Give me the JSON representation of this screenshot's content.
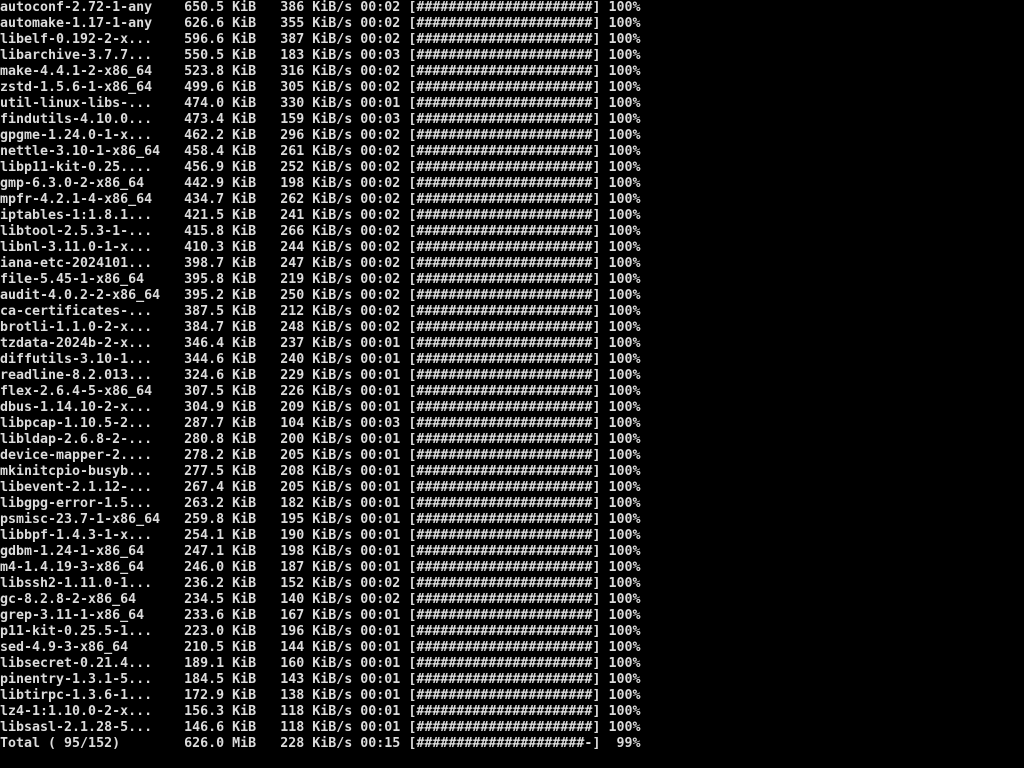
{
  "terminal": {
    "kind": "pacman-download-progress",
    "colors": {
      "background": "#000000",
      "foreground": "#dcdcdc"
    },
    "format": {
      "name_width": 20,
      "size_width": 12,
      "rate_width": 12,
      "time_width": 6,
      "percent_width": 5,
      "bar_inner_width": 22,
      "bar_filled_char": "#",
      "bar_empty_char": "-"
    },
    "downloads": [
      {
        "name": "autoconf-2.72-1-any",
        "size": "650.5 KiB",
        "rate": "386 KiB/s",
        "time": "00:02",
        "percent": 100
      },
      {
        "name": "automake-1.17-1-any",
        "size": "626.6 KiB",
        "rate": "355 KiB/s",
        "time": "00:02",
        "percent": 100
      },
      {
        "name": "libelf-0.192-2-x...",
        "size": "596.6 KiB",
        "rate": "387 KiB/s",
        "time": "00:02",
        "percent": 100
      },
      {
        "name": "libarchive-3.7.7...",
        "size": "550.5 KiB",
        "rate": "183 KiB/s",
        "time": "00:03",
        "percent": 100
      },
      {
        "name": "make-4.4.1-2-x86_64",
        "size": "523.8 KiB",
        "rate": "316 KiB/s",
        "time": "00:02",
        "percent": 100
      },
      {
        "name": "zstd-1.5.6-1-x86_64",
        "size": "499.6 KiB",
        "rate": "305 KiB/s",
        "time": "00:02",
        "percent": 100
      },
      {
        "name": "util-linux-libs-...",
        "size": "474.0 KiB",
        "rate": "330 KiB/s",
        "time": "00:01",
        "percent": 100
      },
      {
        "name": "findutils-4.10.0...",
        "size": "473.4 KiB",
        "rate": "159 KiB/s",
        "time": "00:03",
        "percent": 100
      },
      {
        "name": "gpgme-1.24.0-1-x...",
        "size": "462.2 KiB",
        "rate": "296 KiB/s",
        "time": "00:02",
        "percent": 100
      },
      {
        "name": "nettle-3.10-1-x86_64",
        "size": "458.4 KiB",
        "rate": "261 KiB/s",
        "time": "00:02",
        "percent": 100
      },
      {
        "name": "libp11-kit-0.25....",
        "size": "456.9 KiB",
        "rate": "252 KiB/s",
        "time": "00:02",
        "percent": 100
      },
      {
        "name": "gmp-6.3.0-2-x86_64",
        "size": "442.9 KiB",
        "rate": "198 KiB/s",
        "time": "00:02",
        "percent": 100
      },
      {
        "name": "mpfr-4.2.1-4-x86_64",
        "size": "434.7 KiB",
        "rate": "262 KiB/s",
        "time": "00:02",
        "percent": 100
      },
      {
        "name": "iptables-1:1.8.1...",
        "size": "421.5 KiB",
        "rate": "241 KiB/s",
        "time": "00:02",
        "percent": 100
      },
      {
        "name": "libtool-2.5.3-1-...",
        "size": "415.8 KiB",
        "rate": "266 KiB/s",
        "time": "00:02",
        "percent": 100
      },
      {
        "name": "libnl-3.11.0-1-x...",
        "size": "410.3 KiB",
        "rate": "244 KiB/s",
        "time": "00:02",
        "percent": 100
      },
      {
        "name": "iana-etc-2024101...",
        "size": "398.7 KiB",
        "rate": "247 KiB/s",
        "time": "00:02",
        "percent": 100
      },
      {
        "name": "file-5.45-1-x86_64",
        "size": "395.8 KiB",
        "rate": "219 KiB/s",
        "time": "00:02",
        "percent": 100
      },
      {
        "name": "audit-4.0.2-2-x86_64",
        "size": "395.2 KiB",
        "rate": "250 KiB/s",
        "time": "00:02",
        "percent": 100
      },
      {
        "name": "ca-certificates-...",
        "size": "387.5 KiB",
        "rate": "212 KiB/s",
        "time": "00:02",
        "percent": 100
      },
      {
        "name": "brotli-1.1.0-2-x...",
        "size": "384.7 KiB",
        "rate": "248 KiB/s",
        "time": "00:02",
        "percent": 100
      },
      {
        "name": "tzdata-2024b-2-x...",
        "size": "346.4 KiB",
        "rate": "237 KiB/s",
        "time": "00:01",
        "percent": 100
      },
      {
        "name": "diffutils-3.10-1...",
        "size": "344.6 KiB",
        "rate": "240 KiB/s",
        "time": "00:01",
        "percent": 100
      },
      {
        "name": "readline-8.2.013...",
        "size": "324.6 KiB",
        "rate": "229 KiB/s",
        "time": "00:01",
        "percent": 100
      },
      {
        "name": "flex-2.6.4-5-x86_64",
        "size": "307.5 KiB",
        "rate": "226 KiB/s",
        "time": "00:01",
        "percent": 100
      },
      {
        "name": "dbus-1.14.10-2-x...",
        "size": "304.9 KiB",
        "rate": "209 KiB/s",
        "time": "00:01",
        "percent": 100
      },
      {
        "name": "libpcap-1.10.5-2...",
        "size": "287.7 KiB",
        "rate": "104 KiB/s",
        "time": "00:03",
        "percent": 100
      },
      {
        "name": "libldap-2.6.8-2-...",
        "size": "280.8 KiB",
        "rate": "200 KiB/s",
        "time": "00:01",
        "percent": 100
      },
      {
        "name": "device-mapper-2....",
        "size": "278.2 KiB",
        "rate": "205 KiB/s",
        "time": "00:01",
        "percent": 100
      },
      {
        "name": "mkinitcpio-busyb...",
        "size": "277.5 KiB",
        "rate": "208 KiB/s",
        "time": "00:01",
        "percent": 100
      },
      {
        "name": "libevent-2.1.12-...",
        "size": "267.4 KiB",
        "rate": "205 KiB/s",
        "time": "00:01",
        "percent": 100
      },
      {
        "name": "libgpg-error-1.5...",
        "size": "263.2 KiB",
        "rate": "182 KiB/s",
        "time": "00:01",
        "percent": 100
      },
      {
        "name": "psmisc-23.7-1-x86_64",
        "size": "259.8 KiB",
        "rate": "195 KiB/s",
        "time": "00:01",
        "percent": 100
      },
      {
        "name": "libbpf-1.4.3-1-x...",
        "size": "254.1 KiB",
        "rate": "190 KiB/s",
        "time": "00:01",
        "percent": 100
      },
      {
        "name": "gdbm-1.24-1-x86_64",
        "size": "247.1 KiB",
        "rate": "198 KiB/s",
        "time": "00:01",
        "percent": 100
      },
      {
        "name": "m4-1.4.19-3-x86_64",
        "size": "246.0 KiB",
        "rate": "187 KiB/s",
        "time": "00:01",
        "percent": 100
      },
      {
        "name": "libssh2-1.11.0-1...",
        "size": "236.2 KiB",
        "rate": "152 KiB/s",
        "time": "00:02",
        "percent": 100
      },
      {
        "name": "gc-8.2.8-2-x86_64",
        "size": "234.5 KiB",
        "rate": "140 KiB/s",
        "time": "00:02",
        "percent": 100
      },
      {
        "name": "grep-3.11-1-x86_64",
        "size": "233.6 KiB",
        "rate": "167 KiB/s",
        "time": "00:01",
        "percent": 100
      },
      {
        "name": "p11-kit-0.25.5-1...",
        "size": "223.0 KiB",
        "rate": "196 KiB/s",
        "time": "00:01",
        "percent": 100
      },
      {
        "name": "sed-4.9-3-x86_64",
        "size": "210.5 KiB",
        "rate": "144 KiB/s",
        "time": "00:01",
        "percent": 100
      },
      {
        "name": "libsecret-0.21.4...",
        "size": "189.1 KiB",
        "rate": "160 KiB/s",
        "time": "00:01",
        "percent": 100
      },
      {
        "name": "pinentry-1.3.1-5...",
        "size": "184.5 KiB",
        "rate": "143 KiB/s",
        "time": "00:01",
        "percent": 100
      },
      {
        "name": "libtirpc-1.3.6-1...",
        "size": "172.9 KiB",
        "rate": "138 KiB/s",
        "time": "00:01",
        "percent": 100
      },
      {
        "name": "lz4-1:1.10.0-2-x...",
        "size": "156.3 KiB",
        "rate": "118 KiB/s",
        "time": "00:01",
        "percent": 100
      },
      {
        "name": "libsasl-2.1.28-5...",
        "size": "146.6 KiB",
        "rate": "118 KiB/s",
        "time": "00:01",
        "percent": 100
      }
    ],
    "total": {
      "name": "Total ( 95/152)",
      "size": "626.0 MiB",
      "rate": "228 KiB/s",
      "time": "00:15",
      "percent": 99
    }
  }
}
